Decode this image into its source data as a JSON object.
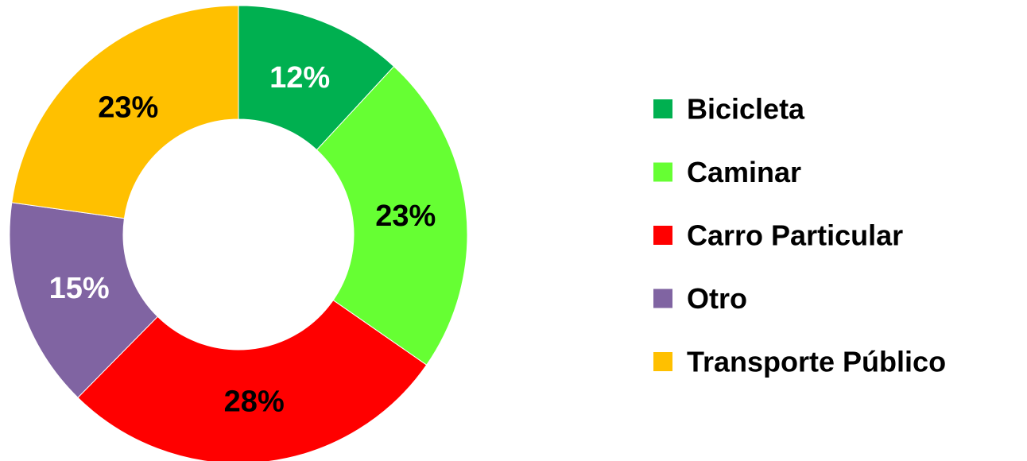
{
  "chart_data": {
    "type": "donut",
    "categories": [
      "Bicicleta",
      "Caminar",
      "Carro Particular",
      "Otro",
      "Transporte Público"
    ],
    "values": [
      12,
      23,
      28,
      15,
      23
    ],
    "value_labels": [
      "12%",
      "23%",
      "28%",
      "15%",
      "23%"
    ],
    "colors": [
      "#00b050",
      "#66ff33",
      "#ff0000",
      "#8064a2",
      "#ffc000"
    ],
    "label_colors": [
      "#ffffff",
      "#000000",
      "#000000",
      "#ffffff",
      "#000000"
    ],
    "legend": "right"
  }
}
